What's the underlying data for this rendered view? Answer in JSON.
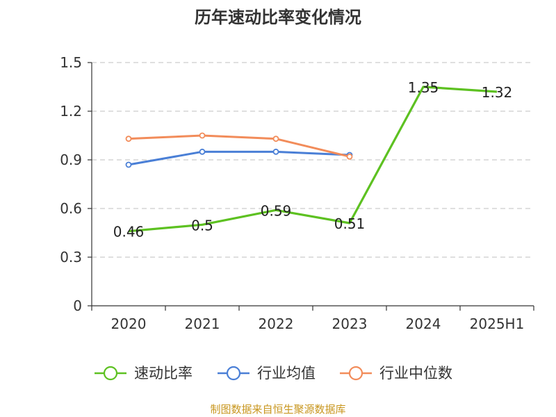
{
  "chart_data": {
    "type": "line",
    "title": "历年速动比率变化情况",
    "categories": [
      "2020",
      "2021",
      "2022",
      "2023",
      "2024",
      "2025H1"
    ],
    "ylim": [
      0,
      1.5
    ],
    "yticks": [
      "0",
      "0.3",
      "0.6",
      "0.9",
      "1.2",
      "1.5"
    ],
    "grid": true,
    "legend_position": "bottom",
    "series": [
      {
        "name": "速动比率",
        "color": "#5dc121",
        "values": [
          0.46,
          0.5,
          0.59,
          0.51,
          1.35,
          1.32
        ],
        "labels": [
          "0.46",
          "0.5",
          "0.59",
          "0.51",
          "1.35",
          "1.32"
        ]
      },
      {
        "name": "行业均值",
        "color": "#4a7fd6",
        "values": [
          0.87,
          0.95,
          0.95,
          0.93,
          null,
          null
        ],
        "labels": []
      },
      {
        "name": "行业中位数",
        "color": "#f28c5a",
        "values": [
          1.03,
          1.05,
          1.03,
          0.92,
          null,
          null
        ],
        "labels": []
      }
    ]
  },
  "source": "制图数据来自恒生聚源数据库"
}
